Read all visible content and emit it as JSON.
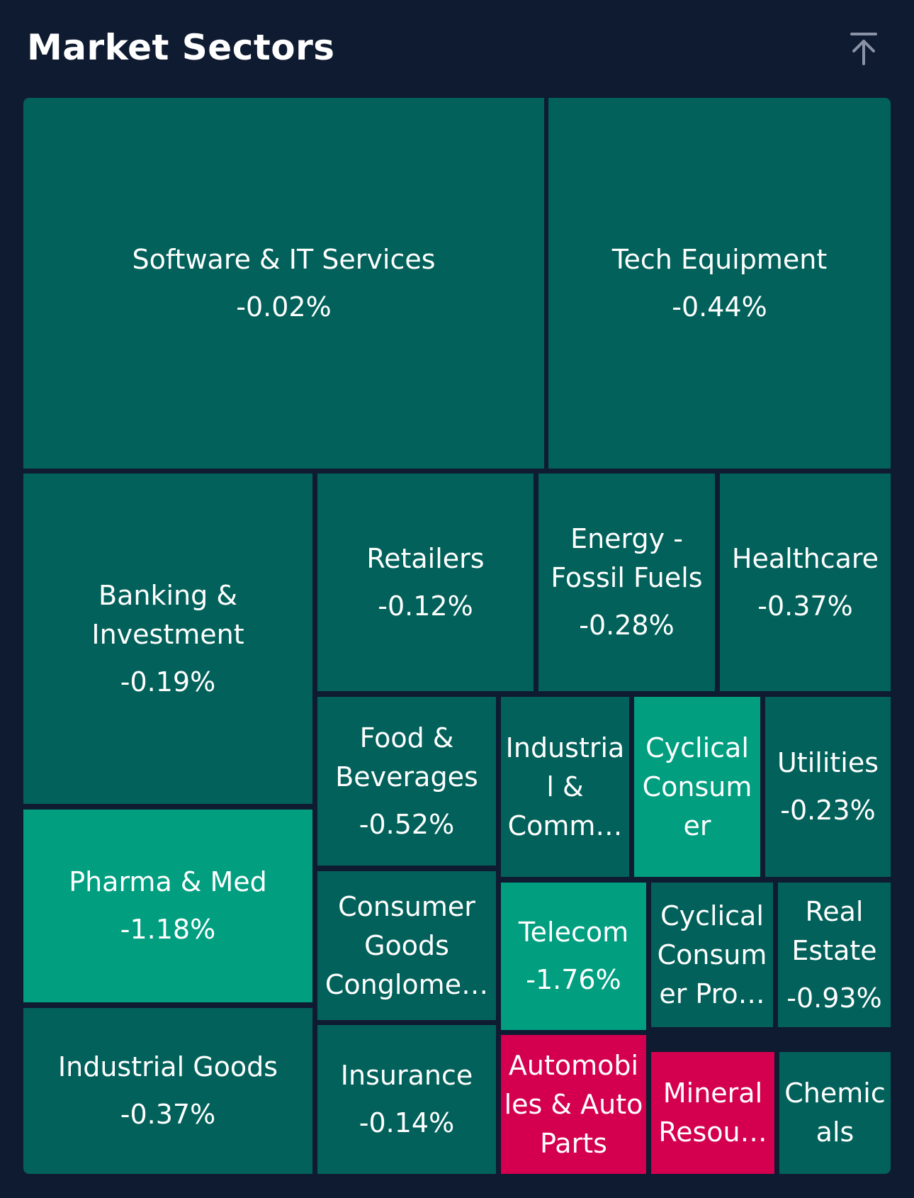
{
  "header": {
    "title": "Market Sectors"
  },
  "icons": {
    "collapse": "arrow-up-to-line-icon"
  },
  "colors": {
    "background": "#0f1b31",
    "tile_default": "#02615a",
    "tile_positive_highlight": "#019e80",
    "tile_negative_highlight": "#d4004f"
  },
  "sectors": [
    {
      "label": "Software & IT Services",
      "change": "-0.02%"
    },
    {
      "label": "Tech Equipment",
      "change": "-0.44%"
    },
    {
      "label": "Banking &\nInvestment",
      "change": "-0.19%"
    },
    {
      "label": "Retailers",
      "change": "-0.12%"
    },
    {
      "label": "Energy -\nFossil Fuels",
      "change": "-0.28%"
    },
    {
      "label": "Healthcare",
      "change": "-0.37%"
    },
    {
      "label": "Food &\nBeverages",
      "change": "-0.52%"
    },
    {
      "label": "Industria\nl &\nComm…",
      "change": ""
    },
    {
      "label": "Cyclical\nConsum\ner",
      "change": ""
    },
    {
      "label": "Utilities",
      "change": "-0.23%"
    },
    {
      "label": "Pharma & Med",
      "change": "-1.18%"
    },
    {
      "label": "Consumer\nGoods\nConglome…",
      "change": ""
    },
    {
      "label": "Telecom",
      "change": "-1.76%"
    },
    {
      "label": "Cyclical\nConsum\ner Pro…",
      "change": ""
    },
    {
      "label": "Real\nEstate",
      "change": "-0.93%"
    },
    {
      "label": "Industrial Goods",
      "change": "-0.37%"
    },
    {
      "label": "Insurance",
      "change": "-0.14%"
    },
    {
      "label": "Automobi\nles & Auto\nParts",
      "change": ""
    },
    {
      "label": "Mineral\nResou…",
      "change": ""
    },
    {
      "label": "Chemic\nals",
      "change": ""
    }
  ]
}
